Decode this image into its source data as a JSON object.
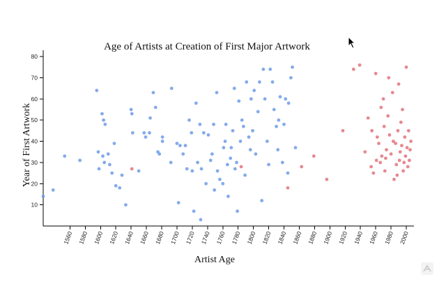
{
  "chart_data": {
    "type": "scatter",
    "title": "Age of Artists at Creation of First Major Artwork",
    "xlabel": "Artist Age",
    "ylabel": "Year of First Artwork",
    "xlim": [
      1525,
      2010
    ],
    "ylim": [
      0,
      83
    ],
    "xticks": [
      1560,
      1580,
      1600,
      1620,
      1640,
      1660,
      1680,
      1700,
      1720,
      1740,
      1760,
      1780,
      1800,
      1820,
      1840,
      1860,
      1880,
      1900,
      1920,
      1940,
      1960,
      1980,
      2000
    ],
    "yticks": [
      10,
      20,
      30,
      40,
      50,
      60,
      70,
      80
    ],
    "grid": false,
    "legend": "none",
    "series": [
      {
        "color": "#6f9be8",
        "points": [
          [
            1525,
            14
          ],
          [
            1538,
            17
          ],
          [
            1553,
            33
          ],
          [
            1573,
            31
          ],
          [
            1595,
            64
          ],
          [
            1597,
            35
          ],
          [
            1598,
            27
          ],
          [
            1602,
            53
          ],
          [
            1604,
            50
          ],
          [
            1606,
            48
          ],
          [
            1605,
            30
          ],
          [
            1603,
            33
          ],
          [
            1610,
            34
          ],
          [
            1612,
            29
          ],
          [
            1615,
            25
          ],
          [
            1618,
            39
          ],
          [
            1620,
            19
          ],
          [
            1625,
            18
          ],
          [
            1628,
            24
          ],
          [
            1633,
            10
          ],
          [
            1640,
            55
          ],
          [
            1641,
            53
          ],
          [
            1642,
            44
          ],
          [
            1650,
            26
          ],
          [
            1657,
            44
          ],
          [
            1659,
            42
          ],
          [
            1664,
            44
          ],
          [
            1665,
            51
          ],
          [
            1669,
            63
          ],
          [
            1672,
            56
          ],
          [
            1675,
            35
          ],
          [
            1677,
            34
          ],
          [
            1681,
            42
          ],
          [
            1681,
            40
          ],
          [
            1693,
            65
          ],
          [
            1692,
            30
          ],
          [
            1700,
            39
          ],
          [
            1702,
            11
          ],
          [
            1704,
            38
          ],
          [
            1708,
            34
          ],
          [
            1711,
            38
          ],
          [
            1713,
            27
          ],
          [
            1716,
            50
          ],
          [
            1719,
            44
          ],
          [
            1720,
            26
          ],
          [
            1722,
            7
          ],
          [
            1725,
            58
          ],
          [
            1727,
            30
          ],
          [
            1730,
            48
          ],
          [
            1731,
            3
          ],
          [
            1732,
            27
          ],
          [
            1735,
            44
          ],
          [
            1738,
            20
          ],
          [
            1741,
            43
          ],
          [
            1744,
            31
          ],
          [
            1746,
            34
          ],
          [
            1748,
            48
          ],
          [
            1749,
            17
          ],
          [
            1752,
            63
          ],
          [
            1753,
            26
          ],
          [
            1756,
            22
          ],
          [
            1760,
            20
          ],
          [
            1761,
            37
          ],
          [
            1763,
            40
          ],
          [
            1764,
            48
          ],
          [
            1766,
            29
          ],
          [
            1767,
            14
          ],
          [
            1770,
            32
          ],
          [
            1771,
            37
          ],
          [
            1773,
            45
          ],
          [
            1775,
            65
          ],
          [
            1776,
            27
          ],
          [
            1778,
            30
          ],
          [
            1779,
            7
          ],
          [
            1781,
            59
          ],
          [
            1783,
            40
          ],
          [
            1785,
            50
          ],
          [
            1787,
            47
          ],
          [
            1789,
            24
          ],
          [
            1791,
            68
          ],
          [
            1794,
            42
          ],
          [
            1796,
            36
          ],
          [
            1797,
            60
          ],
          [
            1799,
            45
          ],
          [
            1801,
            64
          ],
          [
            1803,
            34
          ],
          [
            1806,
            54
          ],
          [
            1808,
            68
          ],
          [
            1811,
            12
          ],
          [
            1813,
            74
          ],
          [
            1815,
            60
          ],
          [
            1818,
            40
          ],
          [
            1820,
            29
          ],
          [
            1822,
            74
          ],
          [
            1825,
            68
          ],
          [
            1827,
            55
          ],
          [
            1830,
            47
          ],
          [
            1832,
            36
          ],
          [
            1833,
            50
          ],
          [
            1835,
            61
          ],
          [
            1838,
            30
          ],
          [
            1840,
            48
          ],
          [
            1842,
            60
          ],
          [
            1845,
            25
          ],
          [
            1846,
            58
          ],
          [
            1849,
            70
          ],
          [
            1851,
            75
          ],
          [
            1855,
            37
          ]
        ]
      },
      {
        "color": "#e2737c",
        "points": [
          [
            1641,
            27
          ],
          [
            1784,
            28
          ],
          [
            1845,
            18
          ],
          [
            1863,
            28
          ],
          [
            1879,
            33
          ],
          [
            1896,
            22
          ],
          [
            1917,
            45
          ],
          [
            1931,
            74
          ],
          [
            1939,
            76
          ],
          [
            1946,
            35
          ],
          [
            1950,
            51
          ],
          [
            1954,
            28
          ],
          [
            1957,
            25
          ],
          [
            1960,
            72
          ],
          [
            1962,
            42
          ],
          [
            1964,
            39
          ],
          [
            1966,
            30
          ],
          [
            1967,
            56
          ],
          [
            1968,
            33
          ],
          [
            1970,
            60
          ],
          [
            1972,
            26
          ],
          [
            1974,
            36
          ],
          [
            1976,
            52
          ],
          [
            1977,
            70
          ],
          [
            1978,
            43
          ],
          [
            1980,
            34
          ],
          [
            1982,
            63
          ],
          [
            1984,
            22
          ],
          [
            1986,
            39
          ],
          [
            1987,
            29
          ],
          [
            1989,
            45
          ],
          [
            1990,
            67
          ],
          [
            1991,
            31
          ],
          [
            1992,
            35
          ],
          [
            1994,
            38
          ],
          [
            1995,
            55
          ],
          [
            1996,
            26
          ],
          [
            1997,
            30
          ],
          [
            1998,
            42
          ],
          [
            1999,
            33
          ],
          [
            2000,
            75
          ],
          [
            2001,
            37
          ],
          [
            2002,
            28
          ],
          [
            2003,
            45
          ],
          [
            2004,
            31
          ],
          [
            2005,
            36
          ],
          [
            2006,
            40
          ],
          [
            1955,
            45
          ],
          [
            1961,
            31
          ],
          [
            1971,
            47
          ],
          [
            1983,
            40
          ],
          [
            1988,
            24
          ],
          [
            1993,
            49
          ],
          [
            1973,
            32
          ]
        ]
      }
    ]
  }
}
